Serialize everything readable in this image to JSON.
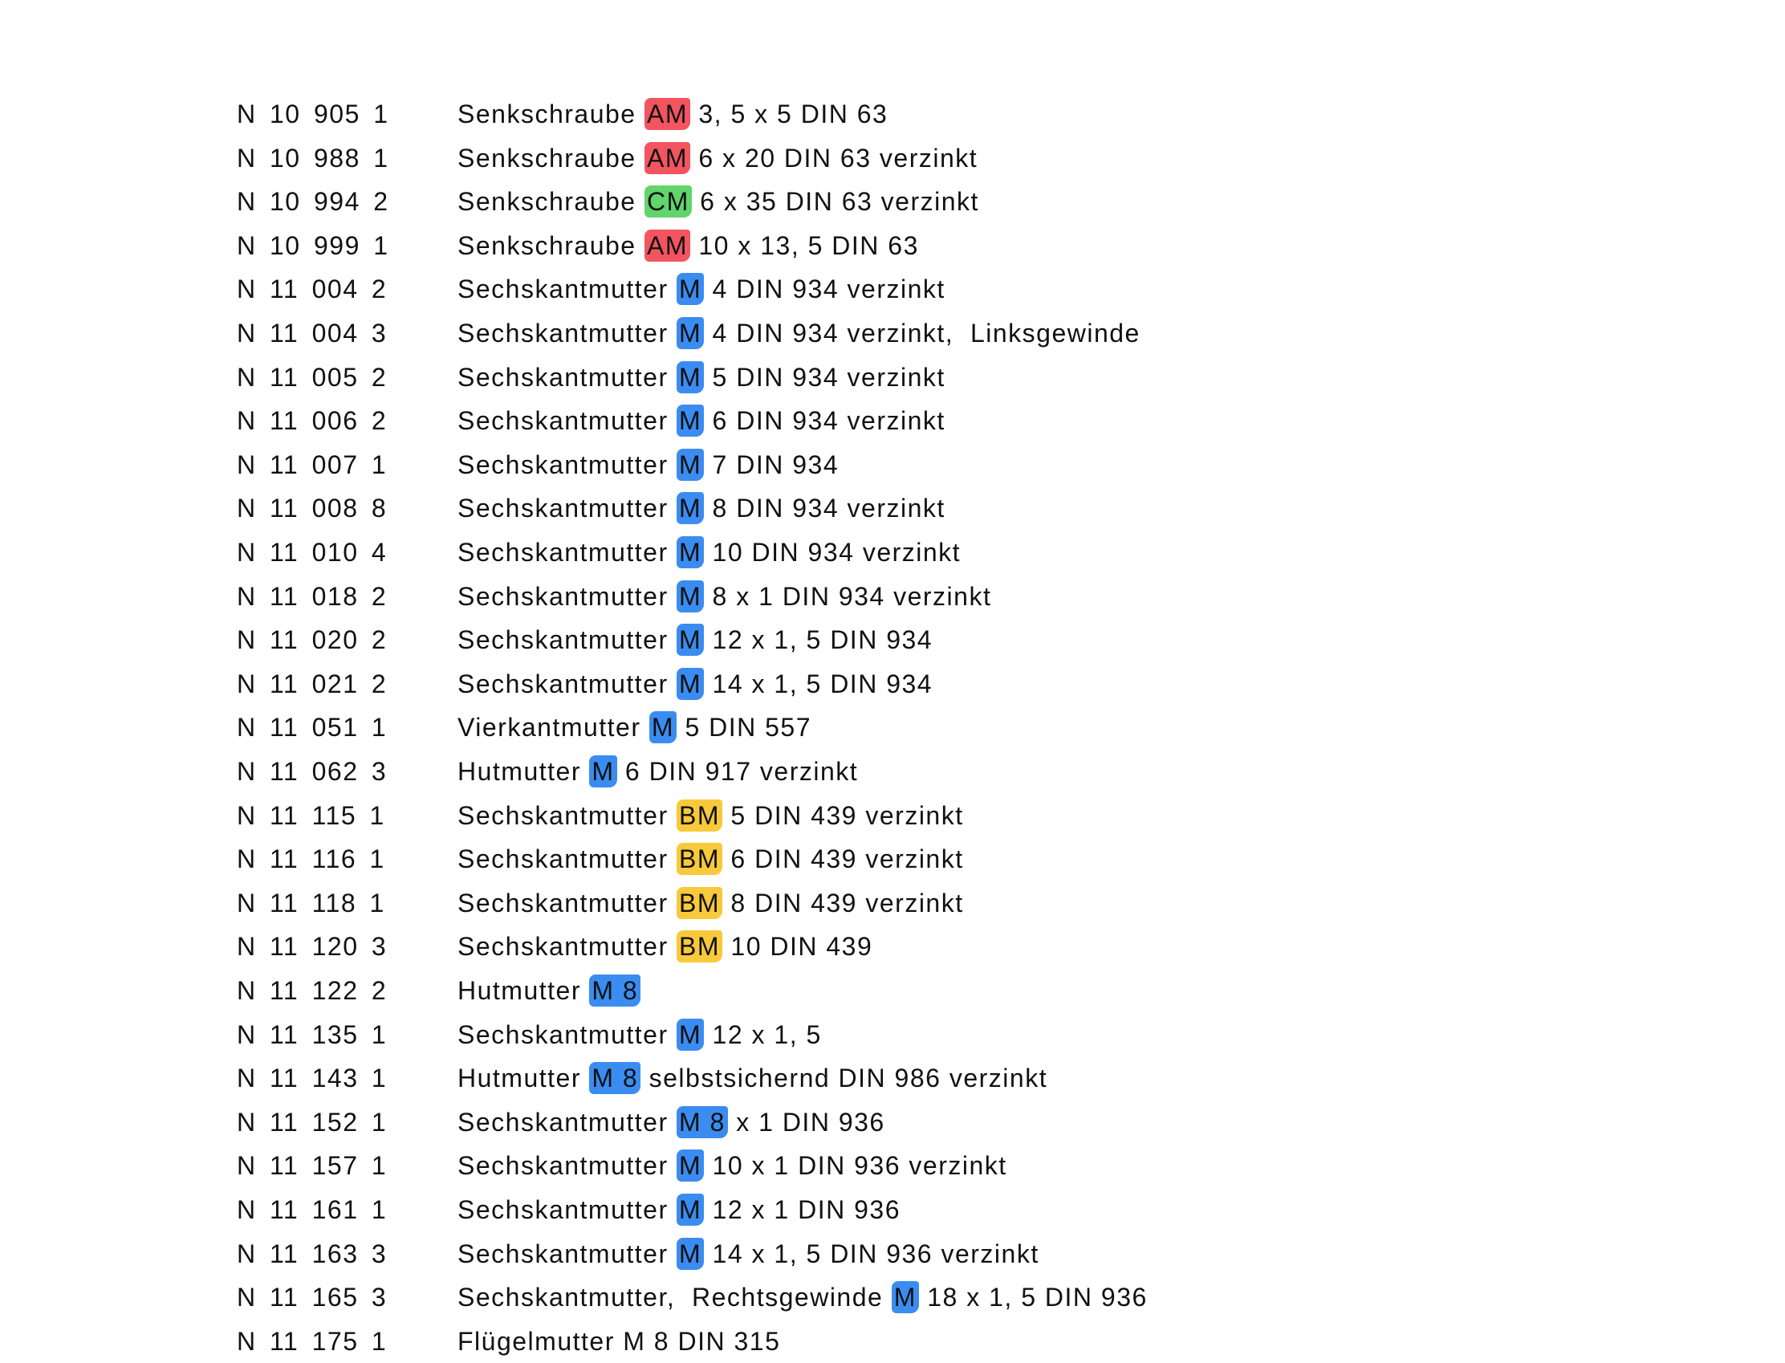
{
  "colors": {
    "red": "#f25560",
    "green": "#62d46c",
    "blue": "#3b8cf0",
    "yellow": "#f9c93c"
  },
  "rows": [
    {
      "code": "N 10 905 1",
      "pre": "Senkschraube ",
      "mark": "AM",
      "post": " 3, 5 x 5 DIN 63",
      "color": "red"
    },
    {
      "code": "N 10 988 1",
      "pre": "Senkschraube ",
      "mark": "AM",
      "post": " 6 x 20 DIN 63 verzinkt",
      "color": "red"
    },
    {
      "code": "N 10 994 2",
      "pre": "Senkschraube ",
      "mark": "CM",
      "post": " 6 x 35 DIN 63 verzinkt",
      "color": "green"
    },
    {
      "code": "N 10 999 1",
      "pre": "Senkschraube ",
      "mark": "AM",
      "post": " 10 x 13, 5 DIN 63",
      "color": "red"
    },
    {
      "code": "N 11 004 2",
      "pre": "Sechskantmutter ",
      "mark": "M",
      "post": " 4 DIN 934 verzinkt",
      "color": "blue"
    },
    {
      "code": "N 11 004 3",
      "pre": "Sechskantmutter ",
      "mark": "M",
      "post": " 4 DIN 934 verzinkt,  Linksgewinde",
      "color": "blue"
    },
    {
      "code": "N 11 005 2",
      "pre": "Sechskantmutter ",
      "mark": "M",
      "post": " 5 DIN 934 verzinkt",
      "color": "blue"
    },
    {
      "code": "N 11 006 2",
      "pre": "Sechskantmutter ",
      "mark": "M",
      "post": " 6 DIN 934 verzinkt",
      "color": "blue"
    },
    {
      "code": "N 11 007 1",
      "pre": "Sechskantmutter ",
      "mark": "M",
      "post": " 7 DIN 934",
      "color": "blue"
    },
    {
      "code": "N 11 008 8",
      "pre": "Sechskantmutter ",
      "mark": "M",
      "post": " 8 DIN 934 verzinkt",
      "color": "blue"
    },
    {
      "code": "N 11 010 4",
      "pre": "Sechskantmutter ",
      "mark": "M",
      "post": " 10 DIN 934 verzinkt",
      "color": "blue"
    },
    {
      "code": "N 11 018 2",
      "pre": "Sechskantmutter ",
      "mark": "M",
      "post": " 8 x 1 DIN 934 verzinkt",
      "color": "blue"
    },
    {
      "code": "N 11 020 2",
      "pre": "Sechskantmutter ",
      "mark": "M",
      "post": " 12 x 1, 5 DIN 934",
      "color": "blue"
    },
    {
      "code": "N 11 021 2",
      "pre": "Sechskantmutter ",
      "mark": "M",
      "post": " 14 x 1, 5 DIN 934",
      "color": "blue"
    },
    {
      "code": "N 11 051 1",
      "pre": "Vierkantmutter ",
      "mark": "M",
      "post": " 5 DIN 557",
      "color": "blue"
    },
    {
      "code": "N 11 062 3",
      "pre": "Hutmutter ",
      "mark": "M",
      "post": " 6 DIN 917 verzinkt",
      "color": "blue"
    },
    {
      "code": "N 11 115 1",
      "pre": "Sechskantmutter ",
      "mark": "BM",
      "post": " 5 DIN 439 verzinkt",
      "color": "yellow"
    },
    {
      "code": "N 11 116 1",
      "pre": "Sechskantmutter ",
      "mark": "BM",
      "post": " 6 DIN 439 verzinkt",
      "color": "yellow"
    },
    {
      "code": "N 11 118 1",
      "pre": "Sechskantmutter ",
      "mark": "BM",
      "post": " 8 DIN 439 verzinkt",
      "color": "yellow"
    },
    {
      "code": "N 11 120 3",
      "pre": "Sechskantmutter ",
      "mark": "BM",
      "post": " 10 DIN 439",
      "color": "yellow"
    },
    {
      "code": "N 11 122 2",
      "pre": "Hutmutter ",
      "mark": "M 8",
      "post": "",
      "color": "blue"
    },
    {
      "code": "N 11 135 1",
      "pre": "Sechskantmutter ",
      "mark": "M",
      "post": " 12 x 1, 5",
      "color": "blue"
    },
    {
      "code": "N 11 143 1",
      "pre": "Hutmutter ",
      "mark": "M 8",
      "post": " selbstsichernd DIN 986 verzinkt",
      "color": "blue"
    },
    {
      "code": "N 11 152 1",
      "pre": "Sechskantmutter ",
      "mark": "M 8",
      "post": " x 1 DIN 936",
      "color": "blue"
    },
    {
      "code": "N 11 157 1",
      "pre": "Sechskantmutter ",
      "mark": "M",
      "post": " 10 x 1 DIN 936 verzinkt",
      "color": "blue"
    },
    {
      "code": "N 11 161 1",
      "pre": "Sechskantmutter ",
      "mark": "M",
      "post": " 12 x 1 DIN 936",
      "color": "blue"
    },
    {
      "code": "N 11 163 3",
      "pre": "Sechskantmutter ",
      "mark": "M",
      "post": " 14 x 1, 5 DIN 936 verzinkt",
      "color": "blue"
    },
    {
      "code": "N 11 165 3",
      "pre": "Sechskantmutter,  Rechtsgewinde ",
      "mark": "M",
      "post": " 18 x 1, 5 DIN 936",
      "color": "blue"
    },
    {
      "code": "N 11 175 1",
      "pre": "Flügelmutter M 8 DIN 315",
      "mark": "",
      "post": "",
      "color": ""
    }
  ]
}
